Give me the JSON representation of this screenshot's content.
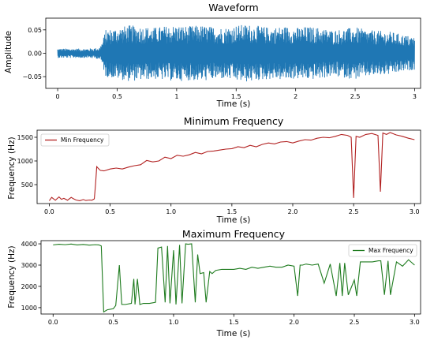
{
  "chart_data": [
    {
      "type": "line",
      "title": "Waveform",
      "xlabel": "Time (s)",
      "ylabel": "Amplitude",
      "xlim": [
        -0.1,
        3.05
      ],
      "ylim": [
        -0.075,
        0.075
      ],
      "xticks": [
        0,
        0.5,
        1,
        1.5,
        2,
        2.5,
        3
      ],
      "xtick_labels": [
        "0",
        "0.5",
        "1",
        "1.5",
        "2",
        "2.5",
        "3"
      ],
      "yticks": [
        -0.05,
        0,
        0.05
      ],
      "ytick_labels": [
        "−0.05",
        "0.00",
        "0.05"
      ],
      "color": "#1f77b4",
      "series": [
        {
          "x": [
            0,
            0.25,
            0.35,
            0.38,
            0.4,
            0.5,
            0.6,
            0.7,
            0.8,
            0.9,
            1.0,
            1.1,
            1.2,
            1.3,
            1.4,
            1.5,
            1.6,
            1.7,
            1.8,
            1.9,
            2.0,
            2.1,
            2.2,
            2.3,
            2.4,
            2.5,
            2.6,
            2.7,
            2.8,
            2.9,
            3.0
          ],
          "envelope": [
            0.01,
            0.01,
            0.012,
            0.028,
            0.05,
            0.055,
            0.06,
            0.058,
            0.055,
            0.058,
            0.06,
            0.058,
            0.06,
            0.057,
            0.055,
            0.06,
            0.062,
            0.058,
            0.055,
            0.058,
            0.055,
            0.057,
            0.055,
            0.05,
            0.052,
            0.056,
            0.05,
            0.048,
            0.046,
            0.04,
            0.035
          ]
        }
      ]
    },
    {
      "type": "line",
      "title": "Minimum Frequency",
      "xlabel": "Time (s)",
      "ylabel": "Frequency (Hz)",
      "xlim": [
        -0.1,
        3.05
      ],
      "ylim": [
        100,
        1650
      ],
      "xticks": [
        0,
        0.5,
        1,
        1.5,
        2,
        2.5,
        3
      ],
      "xtick_labels": [
        "0.0",
        "0.5",
        "1.0",
        "1.5",
        "2.0",
        "2.5",
        "3.0"
      ],
      "yticks": [
        500,
        1000,
        1500
      ],
      "ytick_labels": [
        "500",
        "1000",
        "1500"
      ],
      "legend": "top-left",
      "series": [
        {
          "name": "Min Frequency",
          "color": "#b22222",
          "x": [
            0.0,
            0.02,
            0.05,
            0.08,
            0.1,
            0.12,
            0.15,
            0.18,
            0.2,
            0.22,
            0.25,
            0.28,
            0.3,
            0.33,
            0.35,
            0.37,
            0.38,
            0.39,
            0.4,
            0.42,
            0.45,
            0.5,
            0.55,
            0.6,
            0.65,
            0.7,
            0.75,
            0.8,
            0.85,
            0.9,
            0.95,
            1.0,
            1.05,
            1.1,
            1.15,
            1.2,
            1.25,
            1.3,
            1.35,
            1.4,
            1.45,
            1.5,
            1.55,
            1.6,
            1.65,
            1.7,
            1.75,
            1.8,
            1.85,
            1.9,
            1.95,
            2.0,
            2.05,
            2.1,
            2.15,
            2.2,
            2.25,
            2.3,
            2.35,
            2.4,
            2.45,
            2.48,
            2.5,
            2.52,
            2.55,
            2.6,
            2.65,
            2.7,
            2.72,
            2.74,
            2.77,
            2.8,
            2.85,
            2.9,
            2.95,
            3.0
          ],
          "values": [
            160,
            230,
            170,
            240,
            190,
            210,
            170,
            230,
            200,
            175,
            160,
            185,
            165,
            175,
            170,
            200,
            500,
            880,
            850,
            800,
            790,
            830,
            850,
            830,
            870,
            900,
            920,
            1010,
            980,
            1000,
            1080,
            1050,
            1120,
            1100,
            1130,
            1180,
            1150,
            1200,
            1210,
            1230,
            1250,
            1260,
            1300,
            1280,
            1330,
            1300,
            1350,
            1380,
            1360,
            1400,
            1410,
            1380,
            1420,
            1450,
            1440,
            1480,
            1500,
            1490,
            1520,
            1560,
            1540,
            1500,
            220,
            1520,
            1500,
            1560,
            1580,
            1540,
            350,
            1590,
            1560,
            1600,
            1550,
            1520,
            1480,
            1450
          ]
        }
      ]
    },
    {
      "type": "line",
      "title": "Maximum Frequency",
      "xlabel": "Time (s)",
      "ylabel": "Frequency (Hz)",
      "xlim": [
        -0.1,
        3.05
      ],
      "ylim": [
        700,
        4150
      ],
      "xticks": [
        0,
        0.5,
        1,
        1.5,
        2,
        2.5,
        3
      ],
      "xtick_labels": [
        "0.0",
        "0.5",
        "1.0",
        "1.5",
        "2.0",
        "2.5",
        "3.0"
      ],
      "yticks": [
        1000,
        2000,
        3000,
        4000
      ],
      "ytick_labels": [
        "1000",
        "2000",
        "3000",
        "4000"
      ],
      "legend": "top-right",
      "series": [
        {
          "name": "Max Frequency",
          "color": "#1e7b1e",
          "x": [
            0.0,
            0.05,
            0.1,
            0.15,
            0.2,
            0.25,
            0.3,
            0.35,
            0.38,
            0.4,
            0.42,
            0.45,
            0.5,
            0.52,
            0.55,
            0.57,
            0.6,
            0.65,
            0.67,
            0.68,
            0.7,
            0.72,
            0.75,
            0.8,
            0.85,
            0.87,
            0.9,
            0.93,
            0.95,
            0.97,
            1.0,
            1.02,
            1.05,
            1.07,
            1.1,
            1.12,
            1.15,
            1.18,
            1.2,
            1.22,
            1.25,
            1.27,
            1.3,
            1.32,
            1.35,
            1.4,
            1.45,
            1.5,
            1.55,
            1.6,
            1.65,
            1.7,
            1.75,
            1.8,
            1.85,
            1.9,
            1.95,
            2.0,
            2.03,
            2.05,
            2.07,
            2.1,
            2.15,
            2.2,
            2.25,
            2.3,
            2.35,
            2.38,
            2.4,
            2.42,
            2.45,
            2.5,
            2.52,
            2.55,
            2.57,
            2.6,
            2.65,
            2.7,
            2.72,
            2.75,
            2.78,
            2.8,
            2.85,
            2.9,
            2.95,
            3.0
          ],
          "values": [
            3950,
            3980,
            3960,
            3990,
            3950,
            3970,
            3940,
            3960,
            3950,
            3900,
            800,
            900,
            950,
            1100,
            3000,
            1150,
            1150,
            1200,
            2350,
            1150,
            2350,
            1150,
            1200,
            1200,
            1250,
            3800,
            3850,
            1250,
            3900,
            1200,
            3700,
            1150,
            3950,
            1200,
            4000,
            3980,
            4000,
            1250,
            3500,
            2600,
            2650,
            1250,
            2700,
            2600,
            2750,
            2800,
            2800,
            2800,
            2850,
            2800,
            2900,
            2850,
            2900,
            2950,
            2900,
            2900,
            3000,
            2950,
            1550,
            3000,
            3000,
            3050,
            3000,
            3050,
            2150,
            3050,
            1550,
            3100,
            1550,
            3100,
            1600,
            2300,
            1550,
            3150,
            3150,
            3150,
            3150,
            3200,
            3200,
            1600,
            3200,
            1600,
            3150,
            2950,
            3250,
            3000
          ]
        }
      ]
    }
  ]
}
